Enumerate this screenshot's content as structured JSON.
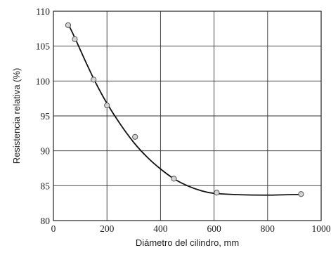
{
  "chart_data": {
    "type": "scatter",
    "title": "",
    "xlabel": "Diámetro del cilindro, mm",
    "ylabel": "Resistencia relativa (%)",
    "xlim": [
      0,
      1000
    ],
    "ylim": [
      80,
      110
    ],
    "xticks": [
      0,
      200,
      400,
      600,
      800,
      1000
    ],
    "yticks": [
      80,
      85,
      90,
      95,
      100,
      105,
      110
    ],
    "grid": true,
    "legend": "none",
    "series": [
      {
        "points": [
          {
            "x": 55,
            "y": 108.0
          },
          {
            "x": 80,
            "y": 106.0
          },
          {
            "x": 150,
            "y": 100.2
          },
          {
            "x": 200,
            "y": 96.5
          },
          {
            "x": 305,
            "y": 92.0
          },
          {
            "x": 450,
            "y": 86.0
          },
          {
            "x": 610,
            "y": 84.0
          },
          {
            "x": 925,
            "y": 83.8
          }
        ],
        "trend_curve": [
          {
            "x": 55,
            "y": 108.2
          },
          {
            "x": 80,
            "y": 106.2
          },
          {
            "x": 120,
            "y": 102.8
          },
          {
            "x": 160,
            "y": 99.6
          },
          {
            "x": 200,
            "y": 96.8
          },
          {
            "x": 250,
            "y": 93.8
          },
          {
            "x": 300,
            "y": 91.2
          },
          {
            "x": 350,
            "y": 89.1
          },
          {
            "x": 400,
            "y": 87.4
          },
          {
            "x": 450,
            "y": 86.0
          },
          {
            "x": 500,
            "y": 85.0
          },
          {
            "x": 550,
            "y": 84.3
          },
          {
            "x": 600,
            "y": 83.9
          },
          {
            "x": 700,
            "y": 83.7
          },
          {
            "x": 800,
            "y": 83.65
          },
          {
            "x": 925,
            "y": 83.75
          }
        ]
      }
    ],
    "colors": {
      "line": "#111111",
      "grid": "#333333",
      "marker_fill": "#d4d4d4",
      "marker_edge": "#555555"
    }
  }
}
